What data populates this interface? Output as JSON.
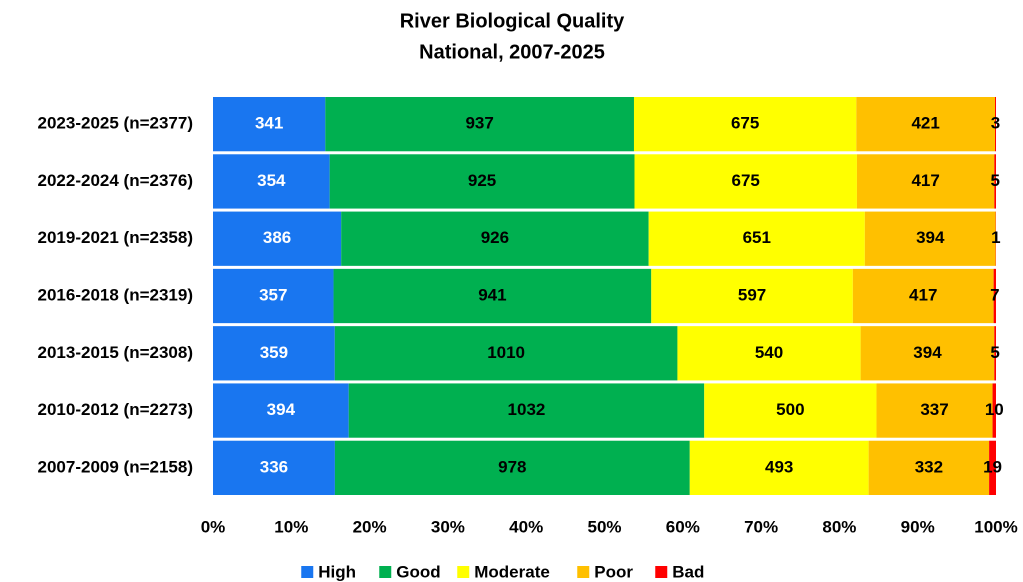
{
  "chart_data": {
    "type": "bar",
    "orientation": "horizontal",
    "stacking": "percent",
    "title": "River Biological Quality",
    "subtitle": "National, 2007-2025",
    "categories": [
      "2023-2025 (n=2377)",
      "2022-2024 (n=2376)",
      "2019-2021 (n=2358)",
      "2016-2018 (n=2319)",
      "2013-2015 (n=2308)",
      "2010-2012 (n=2273)",
      "2007-2009 (n=2158)"
    ],
    "series": [
      {
        "name": "High",
        "color": "#1976f0",
        "label_color": "#ffffff",
        "values": [
          341,
          354,
          386,
          357,
          359,
          394,
          336
        ]
      },
      {
        "name": "Good",
        "color": "#00b050",
        "label_color": "#000000",
        "values": [
          937,
          925,
          926,
          941,
          1010,
          1032,
          978
        ]
      },
      {
        "name": "Moderate",
        "color": "#ffff00",
        "label_color": "#000000",
        "values": [
          675,
          675,
          651,
          597,
          540,
          500,
          493
        ]
      },
      {
        "name": "Poor",
        "color": "#ffc000",
        "label_color": "#000000",
        "values": [
          421,
          417,
          394,
          417,
          394,
          337,
          332
        ]
      },
      {
        "name": "Bad",
        "color": "#ff0000",
        "label_color": "#000000",
        "values": [
          3,
          5,
          1,
          7,
          5,
          10,
          19
        ]
      }
    ],
    "xlim": [
      0,
      100
    ],
    "xticks": [
      {
        "value": 0,
        "label": "0%"
      },
      {
        "value": 10,
        "label": "10%"
      },
      {
        "value": 20,
        "label": "20%"
      },
      {
        "value": 30,
        "label": "30%"
      },
      {
        "value": 40,
        "label": "40%"
      },
      {
        "value": 50,
        "label": "50%"
      },
      {
        "value": 60,
        "label": "60%"
      },
      {
        "value": 70,
        "label": "70%"
      },
      {
        "value": 80,
        "label": "80%"
      },
      {
        "value": 90,
        "label": "90%"
      },
      {
        "value": 100,
        "label": "100%"
      }
    ],
    "legend": "bottom"
  }
}
